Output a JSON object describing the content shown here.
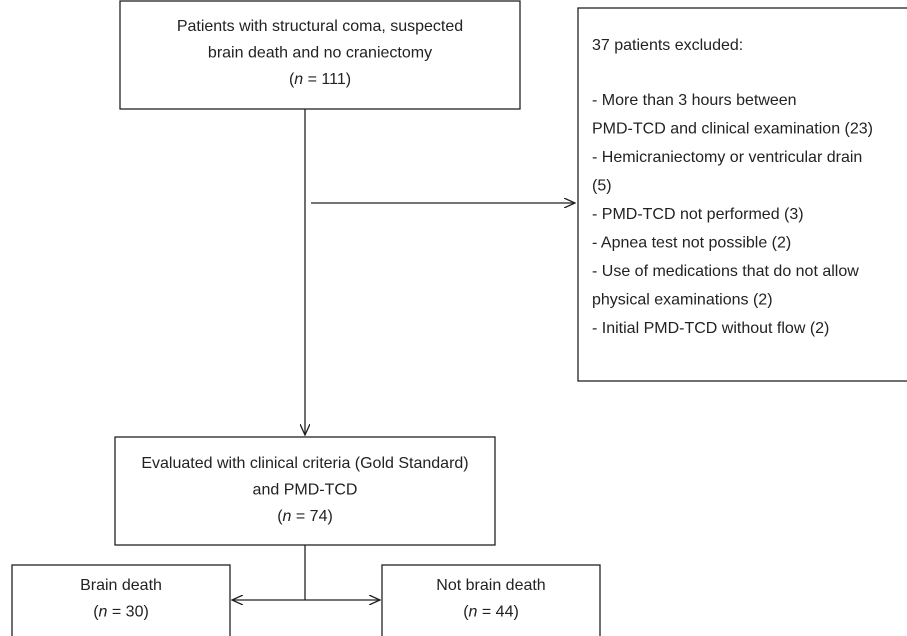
{
  "nodes": [
    {
      "lines": [
        "Patients with structural coma, suspected",
        "brain death and no craniectomy"
      ],
      "count": {
        "open": "(",
        "var": "n",
        "rest": " = 111)"
      }
    },
    {
      "lines": [
        "Evaluated with clinical criteria (Gold Standard)",
        "and PMD-TCD"
      ],
      "count": {
        "open": "(",
        "var": "n",
        "rest": " = 74)"
      }
    },
    {
      "lines": [
        "Brain death"
      ],
      "count": {
        "open": "(",
        "var": "n",
        "rest": " = 30)"
      }
    },
    {
      "lines": [
        "Not brain death"
      ],
      "count": {
        "open": "(",
        "var": "n",
        "rest": " = 44)"
      }
    }
  ],
  "excluded": {
    "title": "37 patients excluded:",
    "lines": [
      "- More than 3 hours between",
      "PMD-TCD and clinical examination (23)",
      "- Hemicraniectomy or ventricular drain",
      "(5)",
      "- PMD-TCD not performed (3)",
      "- Apnea test not possible (2)",
      "- Use of medications that do not allow",
      "physical examinations (2)",
      "- Initial PMD-TCD without flow (2)"
    ]
  }
}
